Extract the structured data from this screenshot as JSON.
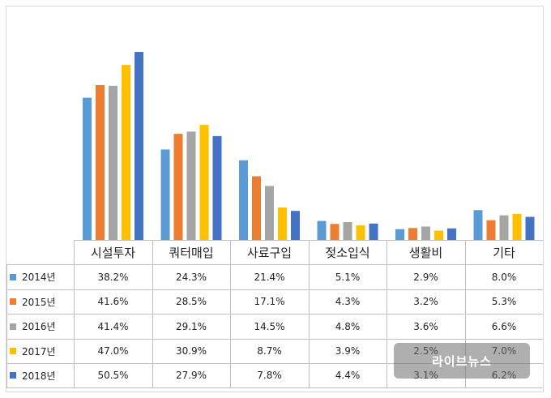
{
  "chart_data": {
    "type": "bar",
    "categories": [
      "시설투자",
      "쿼터매입",
      "사료구입",
      "젖소입식",
      "생활비",
      "기타"
    ],
    "series": [
      {
        "name": "2014년",
        "color": "#5b9bd5",
        "values": [
          38.2,
          24.3,
          21.4,
          5.1,
          2.9,
          8.0
        ]
      },
      {
        "name": "2015년",
        "color": "#ed7d31",
        "values": [
          41.6,
          28.5,
          17.1,
          4.3,
          3.2,
          5.3
        ]
      },
      {
        "name": "2016년",
        "color": "#a5a5a5",
        "values": [
          41.4,
          29.1,
          14.5,
          4.8,
          3.6,
          6.6
        ]
      },
      {
        "name": "2017년",
        "color": "#ffc000",
        "values": [
          47.0,
          30.9,
          8.7,
          3.9,
          2.5,
          7.0
        ]
      },
      {
        "name": "2018년",
        "color": "#4472c4",
        "values": [
          50.5,
          27.9,
          7.8,
          4.4,
          3.1,
          6.2
        ]
      }
    ],
    "data_table": [
      [
        "38.2%",
        "24.3%",
        "21.4%",
        "5.1%",
        "2.9%",
        "8.0%"
      ],
      [
        "41.6%",
        "28.5%",
        "17.1%",
        "4.3%",
        "3.2%",
        "5.3%"
      ],
      [
        "41.4%",
        "29.1%",
        "14.5%",
        "4.8%",
        "3.6%",
        "6.6%"
      ],
      [
        "47.0%",
        "30.9%",
        "8.7%",
        "3.9%",
        "2.5%",
        "7.0%"
      ],
      [
        "50.5%",
        "27.9%",
        "7.8%",
        "4.4%",
        "3.1%",
        "6.2%"
      ]
    ],
    "ylim": [
      0,
      54
    ],
    "grid": false,
    "legend": "table-left"
  },
  "watermark": {
    "text": "라이브뉴스"
  }
}
